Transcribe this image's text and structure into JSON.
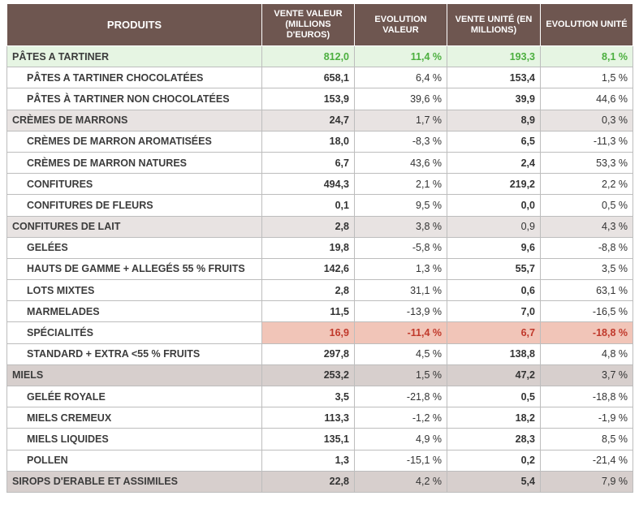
{
  "header": {
    "produits": "PRODUITS",
    "vente_valeur": "VENTE VALEUR (MILLIONS D'EUROS)",
    "evolution_valeur": "EVOLUTION VALEUR",
    "vente_unite": "VENTE UNITÉ (EN MILLIONS)",
    "evolution_unite": "EVOLUTION UNITÉ"
  },
  "rows": [
    {
      "name": "PÂTES A TARTINER",
      "vv": "812,0",
      "ev": "11,4 %",
      "vu": "193,3",
      "eu": "8,1 %"
    },
    {
      "name": "PÂTES A TARTINER CHOCOLATÉES",
      "vv": "658,1",
      "ev": "6,4 %",
      "vu": "153,4",
      "eu": "1,5 %"
    },
    {
      "name": "PÂTES À TARTINER NON CHOCOLATÉES",
      "vv": "153,9",
      "ev": "39,6 %",
      "vu": "39,9",
      "eu": "44,6 %"
    },
    {
      "name": "CRÈMES DE MARRONS",
      "vv": "24,7",
      "ev": "1,7 %",
      "vu": "8,9",
      "eu": "0,3 %"
    },
    {
      "name": "CRÈMES DE MARRON AROMATISÉES",
      "vv": "18,0",
      "ev": "-8,3 %",
      "vu": "6,5",
      "eu": "-11,3 %"
    },
    {
      "name": "CRÈMES DE MARRON NATURES",
      "vv": "6,7",
      "ev": "43,6 %",
      "vu": "2,4",
      "eu": "53,3 %"
    },
    {
      "name": "CONFITURES",
      "vv": "494,3",
      "ev": "2,1 %",
      "vu": "219,2",
      "eu": "2,2 %"
    },
    {
      "name": "CONFITURES DE FLEURS",
      "vv": "0,1",
      "ev": "9,5 %",
      "vu": "0,0",
      "eu": "0,5 %"
    },
    {
      "name": "CONFITURES DE LAIT",
      "vv": "2,8",
      "ev": "3,8 %",
      "vu": "0,9",
      "eu": "4,3 %"
    },
    {
      "name": "GELÉES",
      "vv": "19,8",
      "ev": "-5,8 %",
      "vu": "9,6",
      "eu": "-8,8 %"
    },
    {
      "name": "HAUTS DE GAMME + ALLEGÉS 55 % FRUITS",
      "vv": "142,6",
      "ev": "1,3 %",
      "vu": "55,7",
      "eu": "3,5 %"
    },
    {
      "name": "LOTS MIXTES",
      "vv": "2,8",
      "ev": "31,1 %",
      "vu": "0,6",
      "eu": "63,1 %"
    },
    {
      "name": "MARMELADES",
      "vv": "11,5",
      "ev": "-13,9 %",
      "vu": "7,0",
      "eu": "-16,5 %"
    },
    {
      "name": "SPÉCIALITÉS",
      "vv": "16,9",
      "ev": "-11,4 %",
      "vu": "6,7",
      "eu": "-18,8 %"
    },
    {
      "name": "STANDARD + EXTRA <55 % FRUITS",
      "vv": "297,8",
      "ev": "4,5 %",
      "vu": "138,8",
      "eu": "4,8 %"
    },
    {
      "name": "MIELS",
      "vv": "253,2",
      "ev": "1,5 %",
      "vu": "47,2",
      "eu": "3,7 %"
    },
    {
      "name": "GELÉE ROYALE",
      "vv": "3,5",
      "ev": "-21,8 %",
      "vu": "0,5",
      "eu": "-18,8 %"
    },
    {
      "name": "MIELS CREMEUX",
      "vv": "113,3",
      "ev": "-1,2 %",
      "vu": "18,2",
      "eu": "-1,9 %"
    },
    {
      "name": "MIELS LIQUIDES",
      "vv": "135,1",
      "ev": "4,9 %",
      "vu": "28,3",
      "eu": "8,5 %"
    },
    {
      "name": "POLLEN",
      "vv": "1,3",
      "ev": "-15,1 %",
      "vu": "0,2",
      "eu": "-21,4 %"
    },
    {
      "name": "SIROPS D'ERABLE ET ASSIMILES",
      "vv": "22,8",
      "ev": "4,2 %",
      "vu": "5,4",
      "eu": "7,9 %"
    }
  ],
  "colors": {
    "header_bg": "#6e5650",
    "group_bg": "#e8e3e2",
    "group_dark_bg": "#d7cfcd",
    "highlight_green_bg": "#e6f5e3",
    "highlight_green_text": "#4caf3f",
    "highlight_red_bg": "#f1c5b8",
    "highlight_red_text": "#c0392b"
  }
}
